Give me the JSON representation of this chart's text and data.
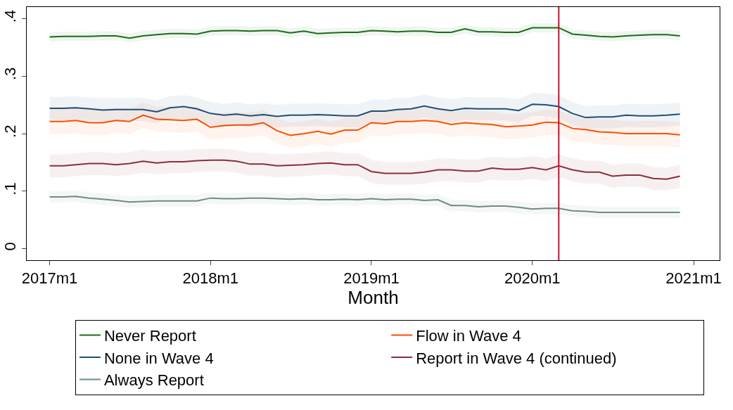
{
  "chart_data": {
    "type": "line",
    "xlabel": "Month",
    "x": [
      "2017-01",
      "2017-02",
      "2017-03",
      "2017-04",
      "2017-05",
      "2017-06",
      "2017-07",
      "2017-08",
      "2017-09",
      "2017-10",
      "2017-11",
      "2017-12",
      "2018-01",
      "2018-02",
      "2018-03",
      "2018-04",
      "2018-05",
      "2018-06",
      "2018-07",
      "2018-08",
      "2018-09",
      "2018-10",
      "2018-11",
      "2018-12",
      "2019-01",
      "2019-02",
      "2019-03",
      "2019-04",
      "2019-05",
      "2019-06",
      "2019-07",
      "2019-08",
      "2019-09",
      "2019-10",
      "2019-11",
      "2019-12",
      "2020-01",
      "2020-02",
      "2020-03",
      "2020-04",
      "2020-05",
      "2020-06",
      "2020-07",
      "2020-08",
      "2020-09",
      "2020-10",
      "2020-11",
      "2020-12"
    ],
    "series": [
      {
        "name": "Never Report",
        "color": "#1a6e1a",
        "values": [
          0.368,
          0.369,
          0.369,
          0.369,
          0.37,
          0.37,
          0.366,
          0.37,
          0.372,
          0.374,
          0.374,
          0.373,
          0.378,
          0.379,
          0.379,
          0.378,
          0.379,
          0.379,
          0.375,
          0.378,
          0.374,
          0.375,
          0.376,
          0.376,
          0.379,
          0.378,
          0.377,
          0.378,
          0.378,
          0.376,
          0.376,
          0.382,
          0.377,
          0.377,
          0.376,
          0.376,
          0.384,
          0.384,
          0.384,
          0.373,
          0.371,
          0.369,
          0.368,
          0.37,
          0.371,
          0.372,
          0.372,
          0.37
        ],
        "lower": [
          0.36,
          0.361,
          0.361,
          0.361,
          0.362,
          0.362,
          0.358,
          0.362,
          0.364,
          0.366,
          0.366,
          0.365,
          0.37,
          0.371,
          0.371,
          0.37,
          0.371,
          0.371,
          0.367,
          0.37,
          0.366,
          0.367,
          0.368,
          0.368,
          0.371,
          0.37,
          0.369,
          0.37,
          0.37,
          0.368,
          0.368,
          0.374,
          0.369,
          0.369,
          0.368,
          0.368,
          0.376,
          0.376,
          0.376,
          0.365,
          0.363,
          0.361,
          0.36,
          0.362,
          0.363,
          0.364,
          0.364,
          0.362
        ],
        "upper": [
          0.376,
          0.377,
          0.377,
          0.377,
          0.378,
          0.378,
          0.374,
          0.378,
          0.38,
          0.382,
          0.382,
          0.381,
          0.386,
          0.387,
          0.387,
          0.386,
          0.387,
          0.387,
          0.383,
          0.386,
          0.382,
          0.383,
          0.384,
          0.384,
          0.387,
          0.386,
          0.385,
          0.386,
          0.386,
          0.384,
          0.384,
          0.39,
          0.385,
          0.385,
          0.384,
          0.384,
          0.392,
          0.392,
          0.392,
          0.381,
          0.379,
          0.377,
          0.376,
          0.378,
          0.379,
          0.38,
          0.38,
          0.378
        ]
      },
      {
        "name": "Flow in Wave 4",
        "color": "#ff4f00",
        "values": [
          0.221,
          0.221,
          0.223,
          0.219,
          0.219,
          0.223,
          0.221,
          0.232,
          0.225,
          0.224,
          0.223,
          0.225,
          0.211,
          0.214,
          0.215,
          0.215,
          0.219,
          0.205,
          0.197,
          0.2,
          0.204,
          0.199,
          0.206,
          0.206,
          0.219,
          0.217,
          0.221,
          0.221,
          0.223,
          0.221,
          0.216,
          0.219,
          0.217,
          0.216,
          0.212,
          0.213,
          0.215,
          0.22,
          0.219,
          0.209,
          0.207,
          0.203,
          0.202,
          0.2,
          0.2,
          0.2,
          0.2,
          0.198
        ],
        "lower": [
          0.199,
          0.199,
          0.201,
          0.197,
          0.197,
          0.201,
          0.199,
          0.21,
          0.203,
          0.202,
          0.201,
          0.203,
          0.189,
          0.192,
          0.193,
          0.193,
          0.197,
          0.183,
          0.175,
          0.178,
          0.182,
          0.177,
          0.184,
          0.184,
          0.197,
          0.195,
          0.199,
          0.199,
          0.201,
          0.199,
          0.194,
          0.197,
          0.195,
          0.194,
          0.19,
          0.191,
          0.193,
          0.198,
          0.197,
          0.187,
          0.185,
          0.181,
          0.18,
          0.178,
          0.178,
          0.178,
          0.178,
          0.176
        ],
        "upper": [
          0.243,
          0.243,
          0.245,
          0.241,
          0.241,
          0.245,
          0.243,
          0.254,
          0.247,
          0.246,
          0.245,
          0.247,
          0.233,
          0.236,
          0.237,
          0.237,
          0.241,
          0.227,
          0.219,
          0.222,
          0.226,
          0.221,
          0.228,
          0.228,
          0.241,
          0.239,
          0.243,
          0.243,
          0.245,
          0.243,
          0.238,
          0.241,
          0.239,
          0.238,
          0.234,
          0.235,
          0.237,
          0.242,
          0.241,
          0.231,
          0.229,
          0.225,
          0.224,
          0.222,
          0.222,
          0.222,
          0.222,
          0.22
        ]
      },
      {
        "name": "None in Wave 4",
        "color": "#1f4e79",
        "values": [
          0.244,
          0.244,
          0.245,
          0.243,
          0.241,
          0.242,
          0.242,
          0.242,
          0.238,
          0.245,
          0.247,
          0.243,
          0.235,
          0.232,
          0.234,
          0.231,
          0.233,
          0.23,
          0.232,
          0.232,
          0.233,
          0.232,
          0.231,
          0.231,
          0.239,
          0.239,
          0.242,
          0.243,
          0.248,
          0.243,
          0.24,
          0.244,
          0.243,
          0.243,
          0.243,
          0.24,
          0.251,
          0.25,
          0.247,
          0.235,
          0.228,
          0.229,
          0.229,
          0.232,
          0.231,
          0.231,
          0.232,
          0.234
        ],
        "lower": [
          0.224,
          0.224,
          0.225,
          0.223,
          0.221,
          0.222,
          0.222,
          0.222,
          0.218,
          0.225,
          0.227,
          0.223,
          0.215,
          0.212,
          0.214,
          0.211,
          0.213,
          0.21,
          0.212,
          0.212,
          0.213,
          0.212,
          0.211,
          0.211,
          0.219,
          0.219,
          0.222,
          0.223,
          0.228,
          0.223,
          0.22,
          0.224,
          0.223,
          0.223,
          0.223,
          0.22,
          0.231,
          0.23,
          0.227,
          0.215,
          0.208,
          0.209,
          0.209,
          0.212,
          0.211,
          0.211,
          0.212,
          0.214
        ],
        "upper": [
          0.264,
          0.264,
          0.265,
          0.263,
          0.261,
          0.262,
          0.262,
          0.262,
          0.258,
          0.265,
          0.267,
          0.263,
          0.255,
          0.252,
          0.254,
          0.251,
          0.253,
          0.25,
          0.252,
          0.252,
          0.253,
          0.252,
          0.251,
          0.251,
          0.259,
          0.259,
          0.262,
          0.263,
          0.268,
          0.263,
          0.26,
          0.264,
          0.263,
          0.263,
          0.263,
          0.26,
          0.271,
          0.27,
          0.267,
          0.255,
          0.248,
          0.249,
          0.249,
          0.252,
          0.251,
          0.251,
          0.252,
          0.254
        ]
      },
      {
        "name": "Report in Wave 4 (continued)",
        "color": "#8b2e3c",
        "values": [
          0.144,
          0.144,
          0.146,
          0.148,
          0.148,
          0.146,
          0.148,
          0.152,
          0.149,
          0.151,
          0.151,
          0.153,
          0.154,
          0.154,
          0.152,
          0.147,
          0.147,
          0.144,
          0.145,
          0.146,
          0.148,
          0.149,
          0.146,
          0.146,
          0.134,
          0.131,
          0.131,
          0.131,
          0.133,
          0.137,
          0.137,
          0.135,
          0.135,
          0.14,
          0.138,
          0.138,
          0.141,
          0.137,
          0.144,
          0.137,
          0.133,
          0.133,
          0.126,
          0.128,
          0.128,
          0.122,
          0.121,
          0.126
        ],
        "lower": [
          0.124,
          0.124,
          0.126,
          0.128,
          0.128,
          0.126,
          0.128,
          0.132,
          0.129,
          0.131,
          0.131,
          0.133,
          0.134,
          0.134,
          0.132,
          0.127,
          0.127,
          0.124,
          0.125,
          0.126,
          0.128,
          0.129,
          0.126,
          0.126,
          0.114,
          0.111,
          0.111,
          0.111,
          0.113,
          0.117,
          0.117,
          0.115,
          0.115,
          0.12,
          0.118,
          0.118,
          0.121,
          0.117,
          0.124,
          0.117,
          0.113,
          0.113,
          0.106,
          0.108,
          0.108,
          0.102,
          0.101,
          0.106
        ],
        "upper": [
          0.164,
          0.164,
          0.166,
          0.168,
          0.168,
          0.166,
          0.168,
          0.172,
          0.169,
          0.171,
          0.171,
          0.173,
          0.174,
          0.174,
          0.172,
          0.167,
          0.167,
          0.164,
          0.165,
          0.166,
          0.168,
          0.169,
          0.166,
          0.166,
          0.154,
          0.151,
          0.151,
          0.151,
          0.153,
          0.157,
          0.157,
          0.155,
          0.155,
          0.16,
          0.158,
          0.158,
          0.161,
          0.157,
          0.164,
          0.157,
          0.153,
          0.153,
          0.146,
          0.148,
          0.148,
          0.142,
          0.141,
          0.146
        ]
      },
      {
        "name": "Always Report",
        "color": "#6b8e80",
        "values": [
          0.09,
          0.09,
          0.091,
          0.088,
          0.086,
          0.084,
          0.081,
          0.082,
          0.083,
          0.083,
          0.083,
          0.083,
          0.088,
          0.087,
          0.087,
          0.088,
          0.088,
          0.087,
          0.086,
          0.087,
          0.085,
          0.085,
          0.086,
          0.085,
          0.087,
          0.085,
          0.086,
          0.086,
          0.084,
          0.085,
          0.075,
          0.075,
          0.073,
          0.074,
          0.074,
          0.072,
          0.069,
          0.07,
          0.07,
          0.066,
          0.065,
          0.063,
          0.063,
          0.063,
          0.063,
          0.063,
          0.063,
          0.063
        ],
        "lower": [
          0.08,
          0.08,
          0.081,
          0.078,
          0.076,
          0.074,
          0.071,
          0.072,
          0.073,
          0.073,
          0.073,
          0.073,
          0.078,
          0.077,
          0.077,
          0.078,
          0.078,
          0.077,
          0.076,
          0.077,
          0.075,
          0.075,
          0.076,
          0.075,
          0.077,
          0.075,
          0.076,
          0.076,
          0.074,
          0.075,
          0.065,
          0.065,
          0.063,
          0.064,
          0.064,
          0.062,
          0.059,
          0.06,
          0.06,
          0.056,
          0.055,
          0.053,
          0.053,
          0.053,
          0.053,
          0.053,
          0.053,
          0.053
        ],
        "upper": [
          0.1,
          0.1,
          0.101,
          0.098,
          0.096,
          0.094,
          0.091,
          0.092,
          0.093,
          0.093,
          0.093,
          0.093,
          0.098,
          0.097,
          0.097,
          0.098,
          0.098,
          0.097,
          0.096,
          0.097,
          0.095,
          0.095,
          0.096,
          0.095,
          0.097,
          0.095,
          0.096,
          0.096,
          0.094,
          0.095,
          0.085,
          0.085,
          0.083,
          0.084,
          0.084,
          0.082,
          0.079,
          0.08,
          0.08,
          0.076,
          0.075,
          0.073,
          0.073,
          0.073,
          0.073,
          0.073,
          0.073,
          0.073
        ]
      }
    ],
    "xlim": [
      "2016-11-10",
      "2021-03-01"
    ],
    "xticks": [
      {
        "value": "2017-01",
        "label": "2017m1"
      },
      {
        "value": "2018-01",
        "label": "2018m1"
      },
      {
        "value": "2019-01",
        "label": "2019m1"
      },
      {
        "value": "2020-01",
        "label": "2020m1"
      },
      {
        "value": "2021-01",
        "label": "2021m1"
      }
    ],
    "ylim": [
      -0.02,
      0.42
    ],
    "yticks": [
      0,
      {
        "value": 0.1,
        "label": ".1"
      },
      {
        "value": 0.2,
        "label": ".2"
      },
      {
        "value": 0.3,
        "label": ".3"
      },
      {
        "value": 0.4,
        "label": ".4"
      }
    ],
    "ref_lines": [
      {
        "axis": "x",
        "value": "2020-03",
        "color": "#c8102e"
      }
    ],
    "grid": false,
    "legend": "bottom",
    "line_style": "solid",
    "marker": "none"
  }
}
